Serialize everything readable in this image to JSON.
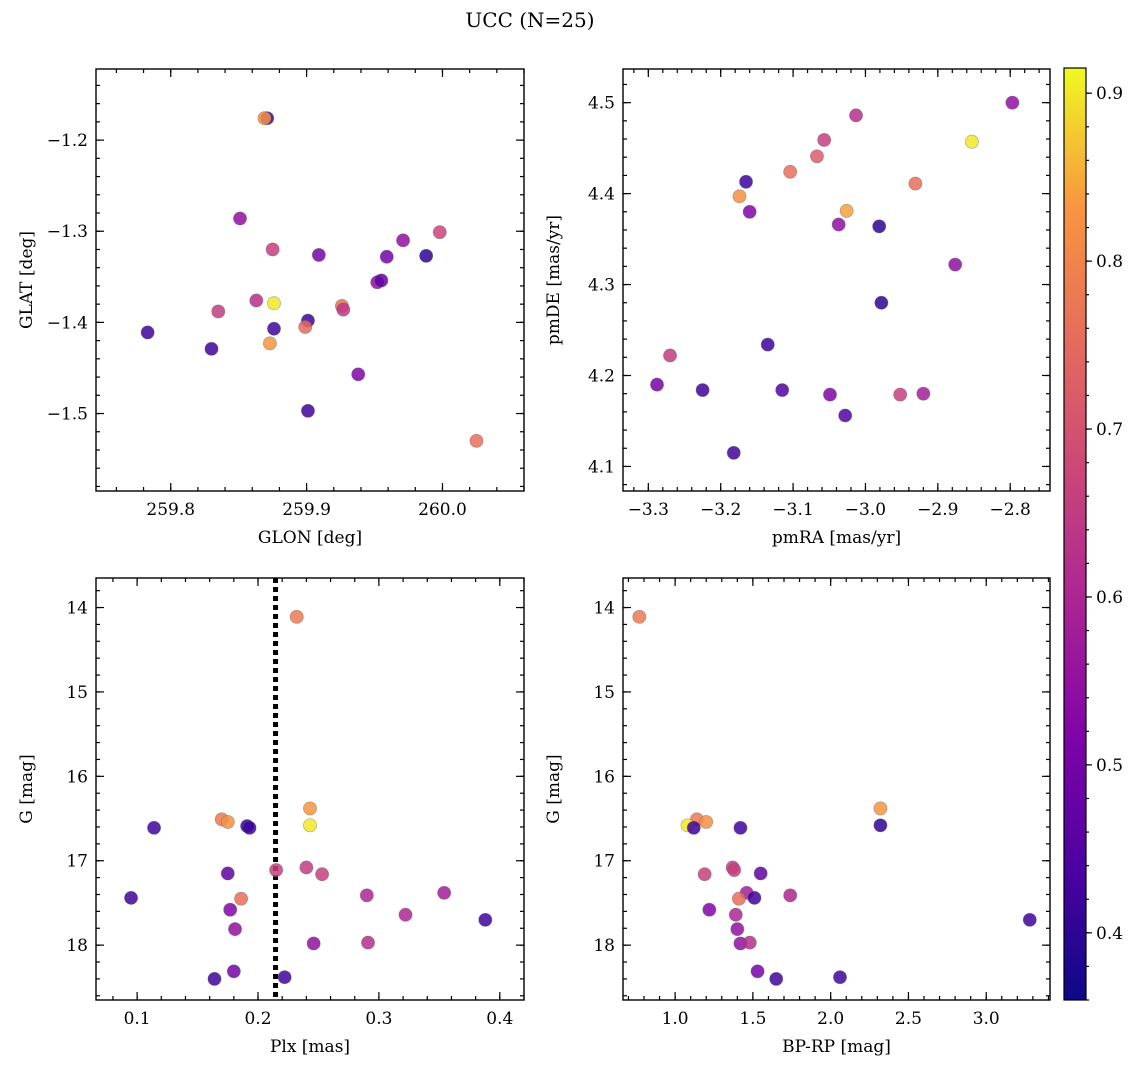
{
  "title": "UCC (N=25)",
  "colorbar": {
    "range": [
      0.36,
      0.915
    ],
    "ticks": [
      0.4,
      0.5,
      0.6,
      0.7,
      0.8,
      0.9
    ],
    "tick_labels": [
      "0.4",
      "0.5",
      "0.6",
      "0.7",
      "0.8",
      "0.9"
    ],
    "colormap": "plasma"
  },
  "chart_data": [
    {
      "type": "scatter",
      "id": "glon-glat",
      "xlabel": "GLON [deg]",
      "ylabel": "GLAT [deg]",
      "xlim": [
        259.745,
        260.06
      ],
      "ylim": [
        -1.585,
        -1.122
      ],
      "xticks": [
        259.8,
        259.9,
        260.0
      ],
      "xtick_labels": [
        "259.8",
        "259.9",
        "260.0"
      ],
      "yticks": [
        -1.2,
        -1.3,
        -1.4,
        -1.5
      ],
      "ytick_labels": [
        "−1.2",
        "−1.3",
        "−1.4",
        "−1.5"
      ],
      "points": [
        {
          "x": 259.871,
          "y": -1.176,
          "c": 0.42
        },
        {
          "x": 259.869,
          "y": -1.176,
          "c": 0.82
        },
        {
          "x": 259.851,
          "y": -1.286,
          "c": 0.55
        },
        {
          "x": 259.875,
          "y": -1.32,
          "c": 0.66
        },
        {
          "x": 259.909,
          "y": -1.326,
          "c": 0.5
        },
        {
          "x": 259.971,
          "y": -1.31,
          "c": 0.55
        },
        {
          "x": 259.998,
          "y": -1.301,
          "c": 0.67
        },
        {
          "x": 259.988,
          "y": -1.327,
          "c": 0.4
        },
        {
          "x": 259.959,
          "y": -1.328,
          "c": 0.5
        },
        {
          "x": 259.952,
          "y": -1.356,
          "c": 0.55
        },
        {
          "x": 259.955,
          "y": -1.354,
          "c": 0.47
        },
        {
          "x": 259.863,
          "y": -1.376,
          "c": 0.62
        },
        {
          "x": 259.876,
          "y": -1.379,
          "c": 0.9
        },
        {
          "x": 259.835,
          "y": -1.388,
          "c": 0.65
        },
        {
          "x": 259.926,
          "y": -1.382,
          "c": 0.76
        },
        {
          "x": 259.927,
          "y": -1.386,
          "c": 0.64
        },
        {
          "x": 259.901,
          "y": -1.398,
          "c": 0.42
        },
        {
          "x": 259.899,
          "y": -1.405,
          "c": 0.75
        },
        {
          "x": 259.876,
          "y": -1.407,
          "c": 0.42
        },
        {
          "x": 259.783,
          "y": -1.411,
          "c": 0.42
        },
        {
          "x": 259.83,
          "y": -1.429,
          "c": 0.42
        },
        {
          "x": 259.873,
          "y": -1.423,
          "c": 0.83
        },
        {
          "x": 259.938,
          "y": -1.457,
          "c": 0.52
        },
        {
          "x": 259.901,
          "y": -1.497,
          "c": 0.42
        },
        {
          "x": 260.025,
          "y": -1.53,
          "c": 0.76
        }
      ]
    },
    {
      "type": "scatter",
      "id": "pmra-pmde",
      "xlabel": "pmRA [mas/yr]",
      "ylabel": "pmDE [mas/yr]",
      "xlim": [
        -3.335,
        -2.745
      ],
      "ylim": [
        4.073,
        4.537
      ],
      "xticks": [
        -3.3,
        -3.2,
        -3.1,
        -3.0,
        -2.9,
        -2.8
      ],
      "xtick_labels": [
        "−3.3",
        "−3.2",
        "−3.1",
        "−3.0",
        "−2.9",
        "−2.8"
      ],
      "yticks": [
        4.1,
        4.2,
        4.3,
        4.4,
        4.5
      ],
      "ytick_labels": [
        "4.1",
        "4.2",
        "4.3",
        "4.4",
        "4.5"
      ],
      "points": [
        {
          "x": -2.797,
          "y": 4.5,
          "c": 0.55
        },
        {
          "x": -3.013,
          "y": 4.486,
          "c": 0.62
        },
        {
          "x": -3.057,
          "y": 4.459,
          "c": 0.66
        },
        {
          "x": -2.853,
          "y": 4.457,
          "c": 0.9
        },
        {
          "x": -3.067,
          "y": 4.441,
          "c": 0.72
        },
        {
          "x": -3.104,
          "y": 4.424,
          "c": 0.76
        },
        {
          "x": -3.165,
          "y": 4.413,
          "c": 0.42
        },
        {
          "x": -2.931,
          "y": 4.411,
          "c": 0.76
        },
        {
          "x": -3.174,
          "y": 4.397,
          "c": 0.82
        },
        {
          "x": -3.026,
          "y": 4.381,
          "c": 0.84
        },
        {
          "x": -3.16,
          "y": 4.38,
          "c": 0.52
        },
        {
          "x": -3.037,
          "y": 4.366,
          "c": 0.55
        },
        {
          "x": -2.981,
          "y": 4.364,
          "c": 0.4
        },
        {
          "x": -2.876,
          "y": 4.322,
          "c": 0.55
        },
        {
          "x": -2.978,
          "y": 4.28,
          "c": 0.4
        },
        {
          "x": -3.135,
          "y": 4.234,
          "c": 0.42
        },
        {
          "x": -3.27,
          "y": 4.222,
          "c": 0.65
        },
        {
          "x": -3.288,
          "y": 4.19,
          "c": 0.5
        },
        {
          "x": -3.225,
          "y": 4.184,
          "c": 0.42
        },
        {
          "x": -3.115,
          "y": 4.184,
          "c": 0.45
        },
        {
          "x": -3.049,
          "y": 4.179,
          "c": 0.52
        },
        {
          "x": -2.952,
          "y": 4.179,
          "c": 0.66
        },
        {
          "x": -2.92,
          "y": 4.18,
          "c": 0.58
        },
        {
          "x": -3.028,
          "y": 4.156,
          "c": 0.45
        },
        {
          "x": -3.182,
          "y": 4.115,
          "c": 0.42
        }
      ]
    },
    {
      "type": "scatter",
      "id": "plx-g",
      "xlabel": "Plx [mas]",
      "ylabel": "G [mag]",
      "xlim": [
        0.066,
        0.42
      ],
      "ylim": [
        13.65,
        18.65
      ],
      "y_inverted": true,
      "xticks": [
        0.1,
        0.2,
        0.3,
        0.4
      ],
      "xtick_labels": [
        "0.1",
        "0.2",
        "0.3",
        "0.4"
      ],
      "yticks": [
        14,
        15,
        16,
        17,
        18
      ],
      "ytick_labels": [
        "14",
        "15",
        "16",
        "17",
        "18"
      ],
      "vline": 0.2145,
      "points": [
        {
          "x": 0.232,
          "y": 14.11,
          "c": 0.78
        },
        {
          "x": 0.243,
          "y": 16.38,
          "c": 0.83
        },
        {
          "x": 0.17,
          "y": 16.51,
          "c": 0.78
        },
        {
          "x": 0.175,
          "y": 16.54,
          "c": 0.82
        },
        {
          "x": 0.243,
          "y": 16.58,
          "c": 0.9
        },
        {
          "x": 0.114,
          "y": 16.61,
          "c": 0.42
        },
        {
          "x": 0.191,
          "y": 16.59,
          "c": 0.4
        },
        {
          "x": 0.193,
          "y": 16.61,
          "c": 0.42
        },
        {
          "x": 0.24,
          "y": 17.08,
          "c": 0.65
        },
        {
          "x": 0.215,
          "y": 17.11,
          "c": 0.66
        },
        {
          "x": 0.175,
          "y": 17.15,
          "c": 0.47
        },
        {
          "x": 0.253,
          "y": 17.16,
          "c": 0.66
        },
        {
          "x": 0.29,
          "y": 17.41,
          "c": 0.6
        },
        {
          "x": 0.354,
          "y": 17.38,
          "c": 0.58
        },
        {
          "x": 0.095,
          "y": 17.44,
          "c": 0.42
        },
        {
          "x": 0.186,
          "y": 17.45,
          "c": 0.76
        },
        {
          "x": 0.177,
          "y": 17.58,
          "c": 0.52
        },
        {
          "x": 0.322,
          "y": 17.64,
          "c": 0.6
        },
        {
          "x": 0.388,
          "y": 17.7,
          "c": 0.42
        },
        {
          "x": 0.181,
          "y": 17.81,
          "c": 0.55
        },
        {
          "x": 0.246,
          "y": 17.98,
          "c": 0.55
        },
        {
          "x": 0.291,
          "y": 17.97,
          "c": 0.62
        },
        {
          "x": 0.18,
          "y": 18.31,
          "c": 0.5
        },
        {
          "x": 0.164,
          "y": 18.4,
          "c": 0.42
        },
        {
          "x": 0.222,
          "y": 18.38,
          "c": 0.42
        }
      ]
    },
    {
      "type": "scatter",
      "id": "bprp-g",
      "xlabel": "BP-RP [mag]",
      "ylabel": "G [mag]",
      "xlim": [
        0.665,
        3.41
      ],
      "ylim": [
        13.65,
        18.65
      ],
      "y_inverted": true,
      "xticks": [
        1.0,
        1.5,
        2.0,
        2.5,
        3.0
      ],
      "xtick_labels": [
        "1.0",
        "1.5",
        "2.0",
        "2.5",
        "3.0"
      ],
      "yticks": [
        14,
        15,
        16,
        17,
        18
      ],
      "ytick_labels": [
        "14",
        "15",
        "16",
        "17",
        "18"
      ],
      "points": [
        {
          "x": 0.77,
          "y": 14.11,
          "c": 0.78
        },
        {
          "x": 2.32,
          "y": 16.38,
          "c": 0.83
        },
        {
          "x": 1.14,
          "y": 16.51,
          "c": 0.78
        },
        {
          "x": 1.2,
          "y": 16.54,
          "c": 0.82
        },
        {
          "x": 1.08,
          "y": 16.58,
          "c": 0.9
        },
        {
          "x": 1.12,
          "y": 16.61,
          "c": 0.42
        },
        {
          "x": 1.42,
          "y": 16.61,
          "c": 0.42
        },
        {
          "x": 2.32,
          "y": 16.58,
          "c": 0.4
        },
        {
          "x": 1.37,
          "y": 17.08,
          "c": 0.65
        },
        {
          "x": 1.38,
          "y": 17.11,
          "c": 0.66
        },
        {
          "x": 1.19,
          "y": 17.16,
          "c": 0.66
        },
        {
          "x": 1.55,
          "y": 17.15,
          "c": 0.47
        },
        {
          "x": 1.46,
          "y": 17.38,
          "c": 0.58
        },
        {
          "x": 1.74,
          "y": 17.41,
          "c": 0.6
        },
        {
          "x": 1.51,
          "y": 17.44,
          "c": 0.42
        },
        {
          "x": 1.41,
          "y": 17.45,
          "c": 0.76
        },
        {
          "x": 1.22,
          "y": 17.58,
          "c": 0.52
        },
        {
          "x": 1.39,
          "y": 17.64,
          "c": 0.6
        },
        {
          "x": 3.28,
          "y": 17.7,
          "c": 0.42
        },
        {
          "x": 1.4,
          "y": 17.81,
          "c": 0.55
        },
        {
          "x": 1.42,
          "y": 17.98,
          "c": 0.55
        },
        {
          "x": 1.48,
          "y": 17.97,
          "c": 0.62
        },
        {
          "x": 1.53,
          "y": 18.31,
          "c": 0.5
        },
        {
          "x": 1.65,
          "y": 18.4,
          "c": 0.42
        },
        {
          "x": 2.06,
          "y": 18.38,
          "c": 0.42
        }
      ]
    }
  ]
}
